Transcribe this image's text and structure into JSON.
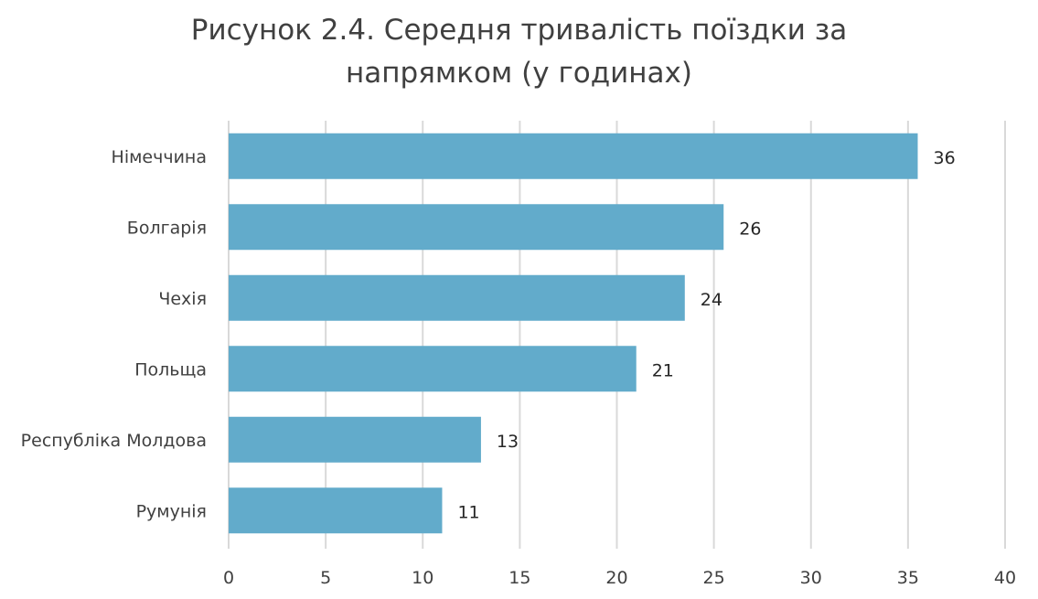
{
  "chart_data": {
    "type": "bar",
    "orientation": "horizontal",
    "title_lines": [
      "Рисунок 2.4. Середня тривалість поїздки за",
      "напрямком (у годинах)"
    ],
    "categories": [
      "Німеччина",
      "Болгарія",
      "Чехія",
      "Польща",
      "Республіка Молдова",
      "Румунія"
    ],
    "values": [
      35.5,
      25.5,
      23.5,
      21,
      13,
      11
    ],
    "data_labels": [
      "36",
      "26",
      "24",
      "21",
      "13",
      "11"
    ],
    "xlim": [
      0,
      40
    ],
    "xticks": [
      0,
      5,
      10,
      15,
      20,
      25,
      30,
      35,
      40
    ],
    "grid": true,
    "legend": "none",
    "bar_color": "#62abcb",
    "grid_color": "#d9d9d9"
  }
}
